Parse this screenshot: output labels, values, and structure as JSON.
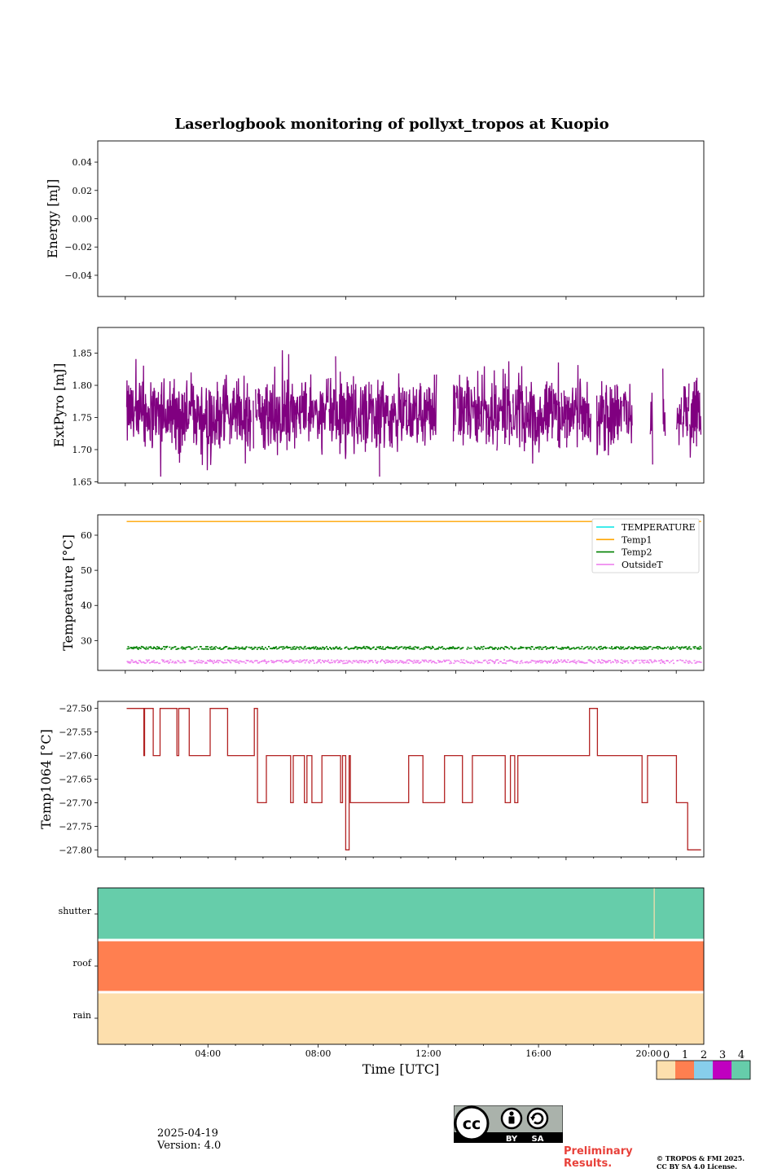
{
  "figure_title": "Laserlogbook monitoring of pollyxt_tropos at Kuopio",
  "footer": {
    "date": "2025-04-19",
    "version": "Version: 4.0",
    "preliminary": "Preliminary Results.",
    "copyright_line1": "© TROPOS & FMI 2025.",
    "copyright_line2": "CC BY SA 4.0 License.",
    "license_badge": {
      "label_by": "BY",
      "label_sa": "SA",
      "icon": "cc-by-sa-license-icon"
    }
  },
  "chart_data": [
    {
      "type": "line",
      "ylabel": "Energy [mJ]",
      "ylim": [
        -0.055,
        0.055
      ],
      "yticks": [
        0.04,
        0.02,
        0.0,
        -0.02,
        -0.04
      ],
      "ytick_labels": [
        "0.04",
        "0.02",
        "0.00",
        "−0.02",
        "−0.04"
      ],
      "xlim_hours": [
        0,
        22.0
      ],
      "note_no_data": true,
      "series": []
    },
    {
      "type": "line",
      "ylabel": "ExtPyro [mJ]",
      "ylim": [
        1.648,
        1.89
      ],
      "yticks": [
        1.85,
        1.8,
        1.75,
        1.7,
        1.65
      ],
      "ytick_labels": [
        "1.85",
        "1.80",
        "1.75",
        "1.70",
        "1.65"
      ],
      "xlim_hours": [
        0,
        22.0
      ],
      "series": [
        {
          "color": "#800080",
          "x_range_hours": [
            1.05,
            21.9
          ],
          "center": 1.755,
          "spread": 0.045,
          "peak": 1.878,
          "min": 1.658,
          "gaps_hours": [
            [
              12.3,
              12.9
            ],
            [
              17.9,
              18.1
            ],
            [
              19.4,
              20.05
            ],
            [
              20.15,
              20.5
            ],
            [
              20.6,
              21.0
            ]
          ]
        }
      ]
    },
    {
      "type": "line",
      "ylabel": "Temperature [°C]",
      "ylim": [
        21.5,
        65.8
      ],
      "yticks": [
        60,
        50,
        40,
        30
      ],
      "ytick_labels": [
        "60",
        "50",
        "40",
        "30"
      ],
      "xlim_hours": [
        0,
        22.0
      ],
      "legend": {
        "placement": "top-right",
        "entries": [
          {
            "name": "TEMPERATURE",
            "color": "#00e5e5"
          },
          {
            "name": "Temp1",
            "color": "#ffa500"
          },
          {
            "name": "Temp2",
            "color": "#008000"
          },
          {
            "name": "OutsideT",
            "color": "#ee82ee"
          }
        ]
      },
      "series": [
        {
          "name": "Temp1",
          "color": "#ffa500",
          "x_range_hours": [
            1.05,
            21.9
          ],
          "value": 63.9
        },
        {
          "name": "Temp2",
          "color": "#008000",
          "x_range_hours": [
            1.05,
            21.9
          ],
          "value": 27.9,
          "spread": 0.4
        },
        {
          "name": "OutsideT",
          "color": "#ee82ee",
          "x_range_hours": [
            1.05,
            21.9
          ],
          "value": 24.0,
          "spread": 0.5
        }
      ]
    },
    {
      "type": "line",
      "ylabel": "Temp1064 [°C]",
      "ylim": [
        -27.815,
        -27.485
      ],
      "yticks": [
        -27.5,
        -27.55,
        -27.6,
        -27.65,
        -27.7,
        -27.75,
        -27.8
      ],
      "ytick_labels": [
        "−27.50",
        "−27.55",
        "−27.60",
        "−27.65",
        "−27.70",
        "−27.75",
        "−27.80"
      ],
      "xlim_hours": [
        0,
        22.0
      ],
      "series": [
        {
          "color": "#b22222",
          "x_range_hours": [
            1.05,
            21.9
          ],
          "levels": [
            -27.5,
            -27.6,
            -27.7,
            -27.8
          ]
        }
      ]
    },
    {
      "type": "heatmap",
      "rows": [
        "shutter",
        "roof",
        "rain"
      ],
      "xlabel": "Time [UTC]",
      "xlim_hours": [
        0,
        22.0
      ],
      "xtick_labels": [
        "04:00",
        "08:00",
        "12:00",
        "16:00",
        "20:00"
      ],
      "xtick_hours": [
        4,
        8,
        12,
        16,
        20
      ],
      "row_values": [
        4,
        1,
        0
      ],
      "shutter_gap_hour": 20.2,
      "colorbar": {
        "ticks": [
          "0",
          "1",
          "2",
          "3",
          "4"
        ],
        "colors": [
          "#fddfad",
          "#ff7f50",
          "#87ceeb",
          "#c000c0",
          "#66cdaa"
        ]
      }
    }
  ]
}
